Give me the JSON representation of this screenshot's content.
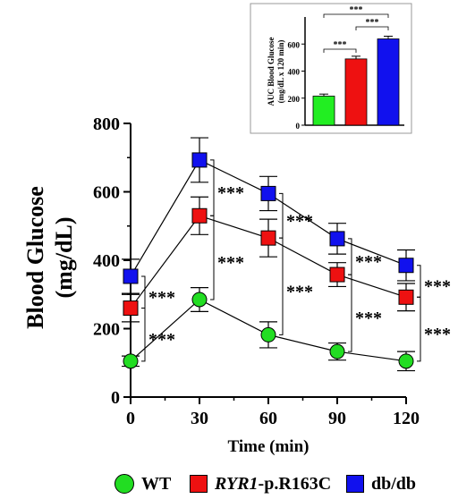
{
  "chart_data": [
    {
      "type": "line",
      "ylabel_line1": "Blood Glucose",
      "ylabel_line2": "(mg/dL)",
      "xlabel": "Time (min)",
      "x": [
        0,
        30,
        60,
        90,
        120
      ],
      "xlim": [
        0,
        120
      ],
      "ylim": [
        0,
        800
      ],
      "yticks": [
        0,
        200,
        400,
        600,
        800
      ],
      "xticks": [
        0,
        30,
        60,
        90,
        120
      ],
      "grid": false,
      "legend_position": "bottom",
      "series": [
        {
          "name": "WT",
          "marker": "circle",
          "color": "#22dd22",
          "values": [
            105,
            285,
            182,
            133,
            105
          ],
          "errors": [
            15,
            35,
            38,
            25,
            28
          ]
        },
        {
          "name": "RYR1-p.R163C",
          "marker": "square",
          "color": "#ee1111",
          "values": [
            260,
            530,
            465,
            358,
            292
          ],
          "errors": [
            40,
            55,
            55,
            35,
            40
          ]
        },
        {
          "name": "db/db",
          "marker": "square",
          "color": "#1111ee",
          "values": [
            353,
            693,
            595,
            463,
            385
          ],
          "errors": [
            50,
            65,
            50,
            45,
            45
          ]
        }
      ],
      "significance": [
        {
          "x": 0,
          "between": [
            "WT",
            "RYR1-p.R163C"
          ],
          "label": "***"
        },
        {
          "x": 0,
          "between": [
            "RYR1-p.R163C",
            "db/db"
          ],
          "label": "***"
        },
        {
          "x": 30,
          "between": [
            "WT",
            "RYR1-p.R163C"
          ],
          "label": "***"
        },
        {
          "x": 30,
          "between": [
            "RYR1-p.R163C",
            "db/db"
          ],
          "label": "***"
        },
        {
          "x": 60,
          "between": [
            "WT",
            "RYR1-p.R163C"
          ],
          "label": "***"
        },
        {
          "x": 60,
          "between": [
            "RYR1-p.R163C",
            "db/db"
          ],
          "label": "***"
        },
        {
          "x": 90,
          "between": [
            "WT",
            "RYR1-p.R163C"
          ],
          "label": "***"
        },
        {
          "x": 90,
          "between": [
            "RYR1-p.R163C",
            "db/db"
          ],
          "label": "***"
        },
        {
          "x": 120,
          "between": [
            "WT",
            "RYR1-p.R163C"
          ],
          "label": "***"
        },
        {
          "x": 120,
          "between": [
            "RYR1-p.R163C",
            "db/db"
          ],
          "label": "***"
        }
      ]
    },
    {
      "type": "bar",
      "ylabel_line1": "AUC Blood Glucose",
      "ylabel_line2": "(mg/dL x 120 min)",
      "ylim": [
        0,
        800
      ],
      "yticks": [
        0,
        200,
        400,
        600
      ],
      "categories": [
        "WT",
        "RYR1-p.R163C",
        "db/db"
      ],
      "colors": [
        "#22ee22",
        "#ee1111",
        "#1111ee"
      ],
      "values": [
        215,
        490,
        638
      ],
      "errors": [
        15,
        20,
        20
      ],
      "significance": [
        {
          "between": [
            "WT",
            "RYR1-p.R163C"
          ],
          "label": "***"
        },
        {
          "between": [
            "RYR1-p.R163C",
            "db/db"
          ],
          "label": "***"
        },
        {
          "between": [
            "WT",
            "db/db"
          ],
          "label": "***"
        }
      ]
    }
  ],
  "legend": {
    "items": [
      {
        "label": "WT",
        "marker": "circle",
        "color": "#22dd22"
      },
      {
        "label_italic": "RYR1",
        "label_rest": "-p.R163C",
        "marker": "square",
        "color": "#ee1111"
      },
      {
        "label": "db/db",
        "marker": "square",
        "color": "#1111ee"
      }
    ]
  }
}
